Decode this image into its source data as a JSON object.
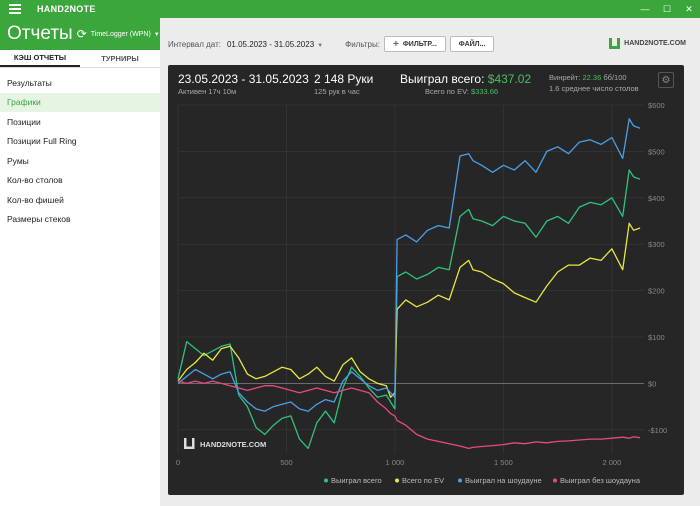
{
  "app": {
    "name": "HAND2NOTE"
  },
  "window_controls": {
    "minimize": "—",
    "maximize": "☐",
    "close": "✕"
  },
  "header": {
    "title": "Отчеты",
    "profile": "TimeLogger (WPN)"
  },
  "sidebar": {
    "tabs": [
      {
        "label": "КЭШ ОТЧЕТЫ"
      },
      {
        "label": "ТУРНИРЫ"
      }
    ],
    "items": [
      {
        "label": "Результаты"
      },
      {
        "label": "Графики"
      },
      {
        "label": "Позиции"
      },
      {
        "label": "Позиции Full Ring"
      },
      {
        "label": "Румы"
      },
      {
        "label": "Кол-во столов"
      },
      {
        "label": "Кол-во фишей"
      },
      {
        "label": "Размеры стеков"
      }
    ],
    "active_index": 1
  },
  "filterbar": {
    "interval_label": "Интервал дат:",
    "date_range": "01.05.2023 - 31.05.2023",
    "filters_label": "Фильтры:",
    "filter_button": "ФИЛЬТР...",
    "file_button": "ФАЙЛ..."
  },
  "logo": {
    "text": "HAND2NOTE.COM"
  },
  "stats": {
    "range": "23.05.2023 - 31.05.2023",
    "active": "Активен 17ч 10м",
    "hands": "2 148 Руки",
    "hands_per_hour": "125 рук в час",
    "won_label": "Выиграл всего:",
    "won_value": "$437.02",
    "ev_label": "Всего по EV:",
    "ev_value": "$333.66",
    "winrate_label": "Винрейт:",
    "winrate_value": "22.36",
    "winrate_suffix": "бб/100",
    "avg_tables": "1.6 среднее число столов"
  },
  "chart_data": {
    "type": "line",
    "watermark": "HAND2NOTE.COM",
    "xlim": [
      0,
      2148
    ],
    "ylim": [
      -150,
      600
    ],
    "x_ticks": [
      0,
      500,
      1000,
      1500,
      2000
    ],
    "x_tick_labels": [
      "0",
      "500",
      "1 000",
      "1 500",
      "2 000"
    ],
    "y_ticks": [
      -100,
      0,
      100,
      200,
      300,
      400,
      500,
      600
    ],
    "y_tick_labels": [
      "-$100",
      "$0",
      "$100",
      "$200",
      "$300",
      "$400",
      "$500",
      "$600"
    ],
    "grid": true,
    "legend_position": "bottom-right",
    "series": [
      {
        "name": "Выиграл всего",
        "color": "#2ec27e",
        "x": [
          0,
          40,
          80,
          120,
          160,
          200,
          240,
          280,
          320,
          360,
          400,
          440,
          480,
          520,
          560,
          600,
          640,
          680,
          720,
          760,
          800,
          840,
          880,
          920,
          960,
          980,
          1000,
          1010,
          1050,
          1100,
          1150,
          1200,
          1250,
          1300,
          1340,
          1360,
          1400,
          1450,
          1500,
          1550,
          1600,
          1650,
          1700,
          1750,
          1800,
          1850,
          1900,
          1950,
          2000,
          2050,
          2080,
          2100,
          2130
        ],
        "values": [
          10,
          90,
          75,
          60,
          70,
          80,
          85,
          -25,
          -50,
          -95,
          -110,
          -90,
          -75,
          -70,
          -120,
          -140,
          -85,
          -60,
          -85,
          -10,
          35,
          15,
          -10,
          -30,
          -25,
          -40,
          -55,
          230,
          240,
          225,
          235,
          250,
          245,
          360,
          375,
          355,
          350,
          340,
          360,
          350,
          345,
          315,
          350,
          360,
          345,
          380,
          390,
          385,
          400,
          360,
          460,
          445,
          440
        ]
      },
      {
        "name": "Всего по EV",
        "color": "#e8e840",
        "x": [
          0,
          40,
          80,
          120,
          160,
          200,
          240,
          280,
          320,
          360,
          400,
          440,
          480,
          520,
          560,
          600,
          640,
          680,
          720,
          760,
          800,
          840,
          880,
          920,
          960,
          980,
          1000,
          1010,
          1050,
          1100,
          1150,
          1200,
          1250,
          1300,
          1340,
          1360,
          1400,
          1450,
          1500,
          1550,
          1600,
          1650,
          1700,
          1750,
          1800,
          1850,
          1900,
          1950,
          2000,
          2050,
          2080,
          2100,
          2130
        ],
        "values": [
          5,
          30,
          45,
          65,
          50,
          75,
          80,
          55,
          20,
          10,
          15,
          25,
          35,
          30,
          10,
          20,
          35,
          15,
          5,
          40,
          55,
          25,
          10,
          0,
          -5,
          -30,
          -20,
          160,
          180,
          165,
          175,
          190,
          180,
          250,
          265,
          245,
          240,
          225,
          215,
          195,
          185,
          175,
          210,
          240,
          255,
          255,
          270,
          265,
          290,
          245,
          345,
          330,
          335
        ]
      },
      {
        "name": "Выиграл на шоудауне",
        "color": "#4a9fe8",
        "x": [
          0,
          40,
          80,
          120,
          160,
          200,
          240,
          280,
          320,
          360,
          400,
          440,
          480,
          520,
          560,
          600,
          640,
          680,
          720,
          760,
          800,
          840,
          880,
          920,
          960,
          980,
          1000,
          1010,
          1050,
          1100,
          1150,
          1200,
          1250,
          1300,
          1340,
          1360,
          1400,
          1450,
          1500,
          1550,
          1600,
          1650,
          1700,
          1750,
          1800,
          1850,
          1900,
          1950,
          2000,
          2050,
          2080,
          2100,
          2130
        ],
        "values": [
          0,
          15,
          30,
          20,
          10,
          20,
          25,
          -20,
          -40,
          -55,
          -60,
          -50,
          -45,
          -40,
          -55,
          -60,
          -45,
          -35,
          -40,
          5,
          25,
          10,
          -5,
          -15,
          -10,
          -20,
          -30,
          310,
          320,
          305,
          330,
          340,
          335,
          490,
          495,
          480,
          470,
          455,
          470,
          460,
          480,
          455,
          500,
          510,
          495,
          520,
          525,
          515,
          530,
          485,
          570,
          555,
          550
        ]
      },
      {
        "name": "Выиграл без шоудауна",
        "color": "#e84a7f",
        "x": [
          0,
          40,
          80,
          120,
          160,
          200,
          240,
          280,
          320,
          360,
          400,
          440,
          480,
          520,
          560,
          600,
          640,
          680,
          720,
          760,
          800,
          840,
          880,
          920,
          960,
          980,
          1000,
          1010,
          1050,
          1100,
          1150,
          1200,
          1250,
          1300,
          1340,
          1360,
          1400,
          1450,
          1500,
          1550,
          1600,
          1650,
          1700,
          1750,
          1800,
          1850,
          1900,
          1950,
          2000,
          2050,
          2080,
          2100,
          2130
        ],
        "values": [
          5,
          0,
          5,
          0,
          5,
          0,
          -5,
          -10,
          -15,
          -10,
          -5,
          -5,
          -10,
          -15,
          -20,
          -15,
          -10,
          -15,
          -20,
          -15,
          -10,
          -15,
          -20,
          -40,
          -55,
          -65,
          -70,
          -80,
          -90,
          -110,
          -120,
          -125,
          -130,
          -135,
          -140,
          -138,
          -136,
          -134,
          -132,
          -128,
          -130,
          -126,
          -128,
          -125,
          -124,
          -122,
          -120,
          -120,
          -118,
          -116,
          -118,
          -115,
          -117
        ]
      }
    ]
  }
}
